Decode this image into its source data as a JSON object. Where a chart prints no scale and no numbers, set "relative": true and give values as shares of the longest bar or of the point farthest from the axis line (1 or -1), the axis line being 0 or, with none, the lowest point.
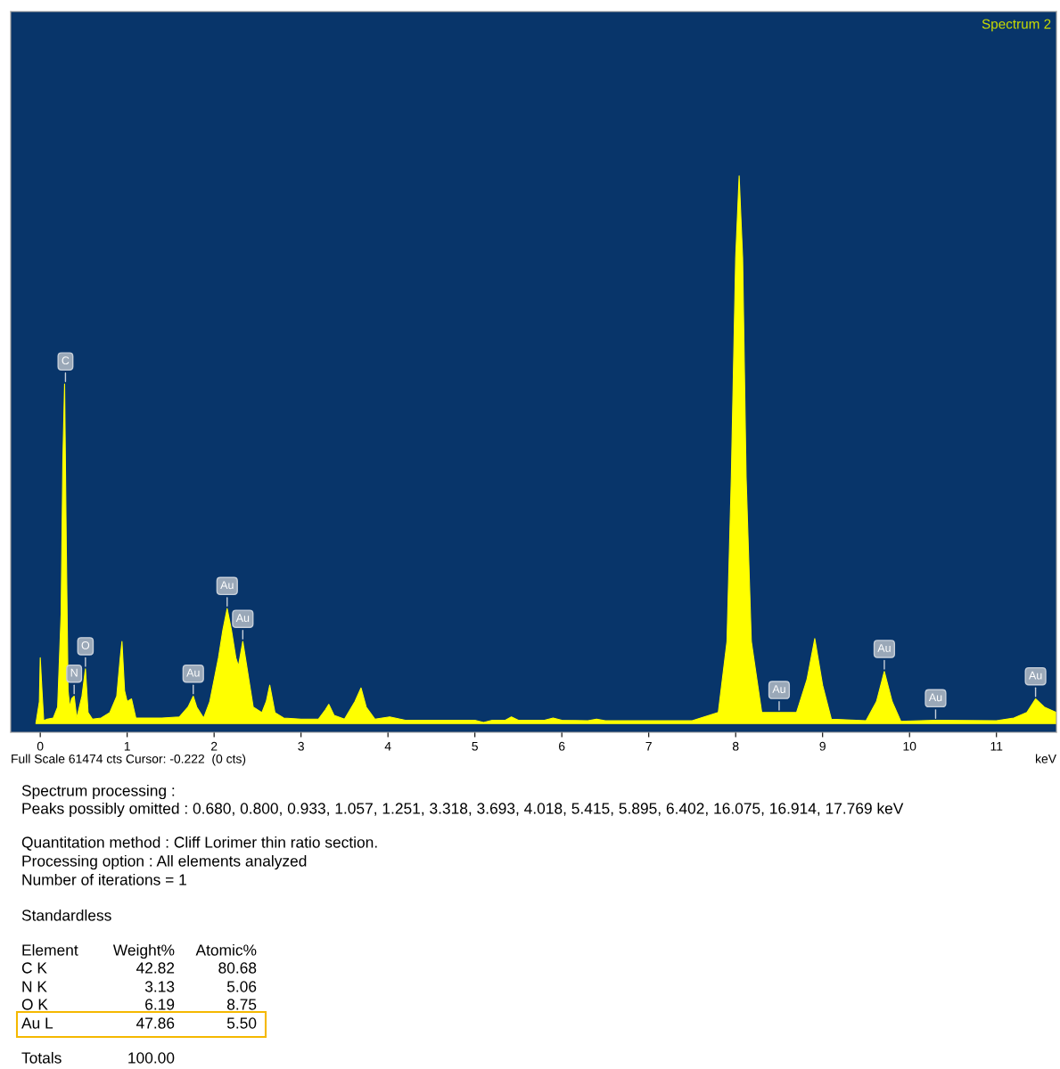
{
  "chart_data": {
    "type": "area",
    "relative": true,
    "title": "Spectrum 2",
    "xlabel": "keV",
    "xlim": [
      -0.34,
      11.69
    ],
    "xticks": [
      0,
      1,
      2,
      3,
      4,
      5,
      6,
      7,
      8,
      9,
      10,
      11
    ],
    "grid": false,
    "series": [
      {
        "color": "#ffff00",
        "x": [
          -0.05,
          -0.01,
          0.0,
          0.02,
          0.04,
          0.08,
          0.15,
          0.2,
          0.24,
          0.26,
          0.28,
          0.3,
          0.32,
          0.34,
          0.36,
          0.39,
          0.42,
          0.45,
          0.48,
          0.52,
          0.55,
          0.6,
          0.7,
          0.8,
          0.88,
          0.92,
          0.94,
          0.97,
          1.0,
          1.05,
          1.1,
          1.2,
          1.4,
          1.6,
          1.7,
          1.76,
          1.8,
          1.88,
          1.95,
          2.0,
          2.05,
          2.1,
          2.15,
          2.2,
          2.25,
          2.28,
          2.33,
          2.38,
          2.45,
          2.55,
          2.6,
          2.64,
          2.7,
          2.8,
          3.0,
          3.2,
          3.28,
          3.32,
          3.38,
          3.5,
          3.62,
          3.69,
          3.75,
          3.85,
          4.02,
          4.2,
          5.0,
          5.1,
          5.2,
          5.35,
          5.42,
          5.5,
          5.8,
          5.9,
          6.0,
          6.3,
          6.4,
          6.5,
          7.5,
          7.8,
          7.9,
          7.95,
          8.0,
          8.04,
          8.08,
          8.12,
          8.18,
          8.3,
          8.5,
          8.7,
          8.82,
          8.91,
          9.0,
          9.1,
          9.5,
          9.62,
          9.71,
          9.8,
          9.9,
          10.3,
          11.0,
          11.2,
          11.35,
          11.45,
          11.55,
          11.69
        ],
        "values": [
          0.0,
          0.04,
          0.12,
          0.06,
          0.005,
          0.008,
          0.01,
          0.03,
          0.2,
          0.48,
          0.62,
          0.32,
          0.06,
          0.03,
          0.045,
          0.05,
          0.01,
          0.03,
          0.05,
          0.1,
          0.02,
          0.008,
          0.01,
          0.02,
          0.05,
          0.12,
          0.15,
          0.06,
          0.04,
          0.045,
          0.01,
          0.01,
          0.01,
          0.012,
          0.03,
          0.05,
          0.03,
          0.01,
          0.04,
          0.08,
          0.12,
          0.17,
          0.21,
          0.17,
          0.12,
          0.105,
          0.15,
          0.1,
          0.03,
          0.02,
          0.04,
          0.07,
          0.02,
          0.01,
          0.008,
          0.008,
          0.025,
          0.035,
          0.015,
          0.008,
          0.04,
          0.065,
          0.03,
          0.008,
          0.012,
          0.006,
          0.006,
          0.002,
          0.006,
          0.006,
          0.012,
          0.006,
          0.006,
          0.01,
          0.006,
          0.005,
          0.008,
          0.005,
          0.005,
          0.02,
          0.15,
          0.45,
          0.85,
          1.0,
          0.85,
          0.45,
          0.15,
          0.02,
          0.02,
          0.02,
          0.08,
          0.155,
          0.07,
          0.008,
          0.005,
          0.04,
          0.095,
          0.04,
          0.004,
          0.006,
          0.005,
          0.01,
          0.02,
          0.045,
          0.03,
          0.02
        ]
      }
    ],
    "annotations": [
      {
        "text": "C",
        "x": 0.29,
        "y": 0.62
      },
      {
        "text": "N",
        "x": 0.39,
        "y": 0.05
      },
      {
        "text": "O",
        "x": 0.52,
        "y": 0.1
      },
      {
        "text": "Au",
        "x": 1.76,
        "y": 0.05
      },
      {
        "text": "Au",
        "x": 2.15,
        "y": 0.21
      },
      {
        "text": "Au",
        "x": 2.33,
        "y": 0.15
      },
      {
        "text": "Au",
        "x": 8.5,
        "y": 0.02
      },
      {
        "text": "Au",
        "x": 9.71,
        "y": 0.095
      },
      {
        "text": "Au",
        "x": 10.3,
        "y": 0.005
      },
      {
        "text": "Au",
        "x": 11.45,
        "y": 0.045
      },
      "Full Scale 61474 cts Cursor: -0.222  (0 cts)",
      "Spectrum processing :",
      "Peaks possibly omitted : 0.680, 0.800, 0.933, 1.057, 1.251, 3.318, 3.693, 4.018, 5.415, 5.895, 6.402, 16.075, 16.914, 17.769 keV",
      "Quantitation method : Cliff Lorimer thin ratio section.",
      "Processing option : All elements analyzed",
      "Number of iterations = 1",
      "Standardless",
      "Element\tWeight%\tAtomic%",
      "C K\t42.82\t80.68",
      "N K\t3.13\t5.06",
      "O K\t6.19\t8.75",
      "Au L\t47.86\t5.50",
      "Totals\t100.00"
    ]
  }
}
